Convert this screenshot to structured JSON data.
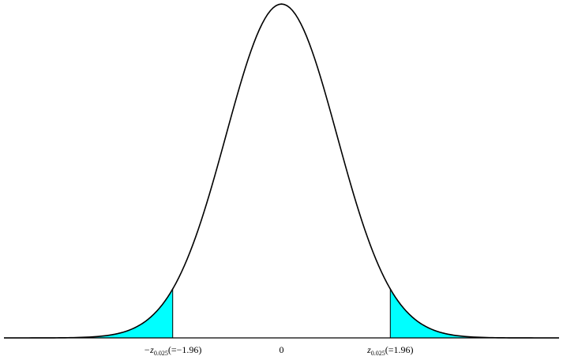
{
  "chart_data": {
    "type": "normal",
    "mean": 0,
    "sd": 1,
    "xlim": [
      -5,
      5
    ],
    "ylim": [
      0,
      0.4
    ],
    "xticks": [
      {
        "value": -1.96,
        "label": "−z",
        "subscript": "0.025",
        "suffix": "(=−1.96)"
      },
      0,
      {
        "value": 1.96,
        "label": "z",
        "subscript": "0.025",
        "suffix": "(=1.96)"
      }
    ],
    "line_color": "#000000",
    "shade_color": "#00ffff"
  }
}
